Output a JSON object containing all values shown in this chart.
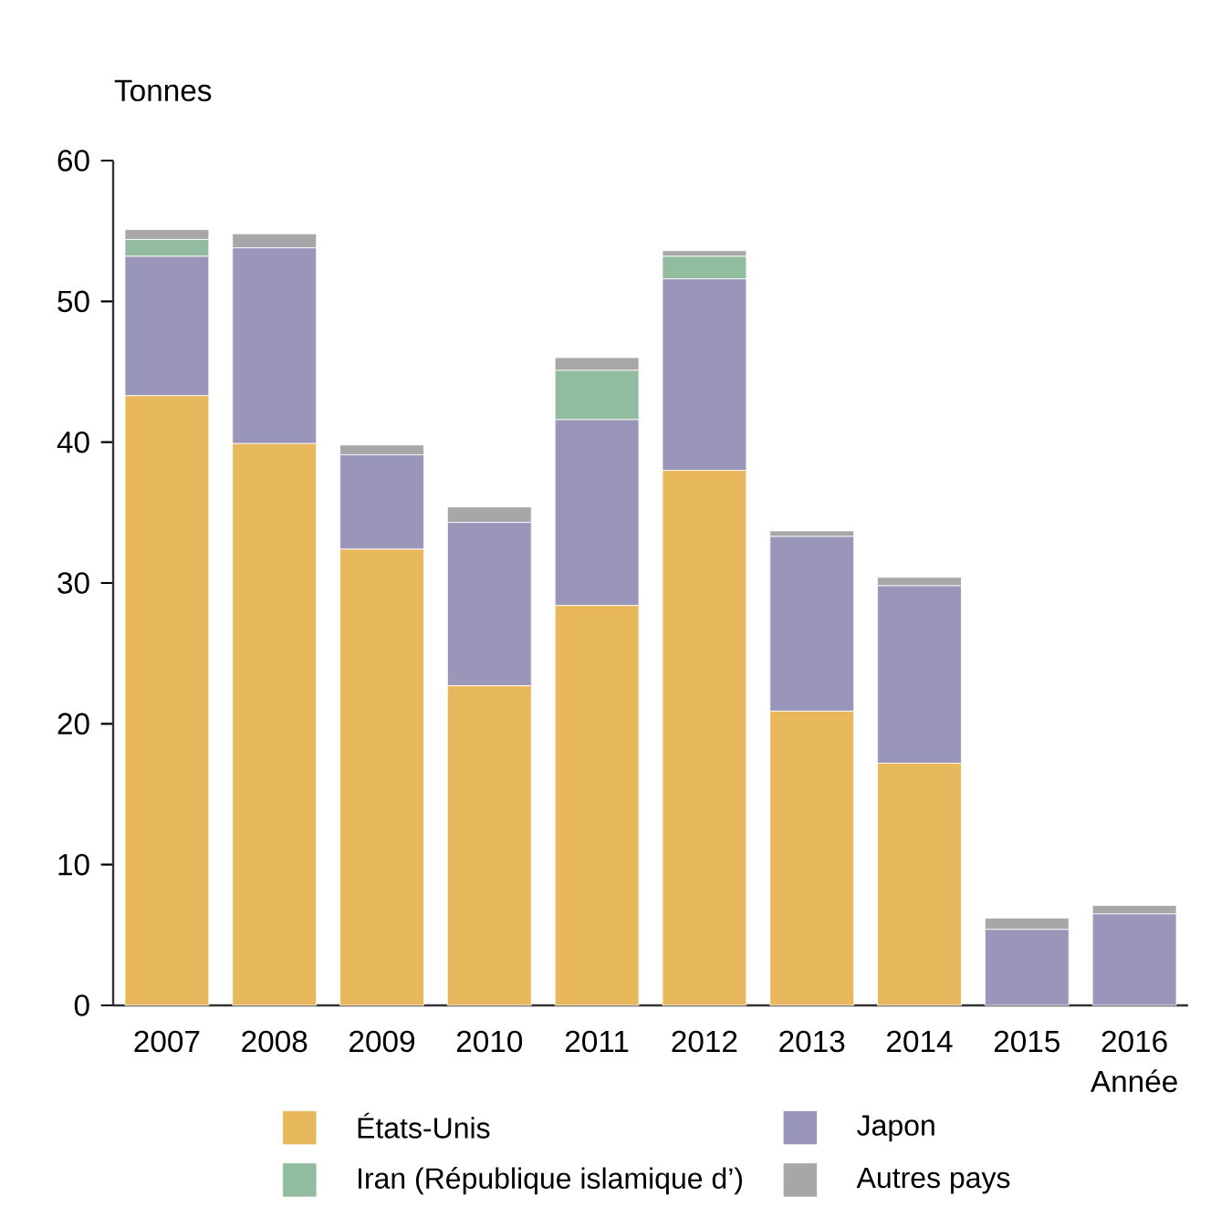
{
  "chart_data": {
    "type": "bar",
    "stacked": true,
    "ylabel": "Tonnes",
    "xlabel": "Année",
    "categories": [
      "2007",
      "2008",
      "2009",
      "2010",
      "2011",
      "2012",
      "2013",
      "2014",
      "2015",
      "2016"
    ],
    "series": [
      {
        "name": "États-Unis",
        "color": "#e8b95c",
        "values": [
          43.3,
          39.9,
          32.4,
          22.7,
          28.4,
          38.0,
          20.9,
          17.2,
          0,
          0
        ]
      },
      {
        "name": "Japon",
        "color": "#9996ba",
        "values": [
          9.9,
          13.9,
          6.7,
          11.6,
          13.2,
          13.6,
          12.4,
          12.6,
          5.4,
          6.5
        ]
      },
      {
        "name": "Iran (République islamique d’)",
        "color": "#92bca0",
        "values": [
          1.2,
          0,
          0,
          0,
          3.5,
          1.6,
          0,
          0,
          0,
          0
        ]
      },
      {
        "name": "Autres pays",
        "color": "#a7a7a9",
        "values": [
          0.7,
          1.0,
          0.7,
          1.1,
          0.9,
          0.4,
          0.4,
          0.6,
          0.8,
          0.6
        ]
      }
    ],
    "ylim": [
      0,
      60
    ],
    "yticks": [
      0,
      10,
      20,
      30,
      40,
      50,
      60
    ],
    "grid": false,
    "legend": "bottom"
  }
}
